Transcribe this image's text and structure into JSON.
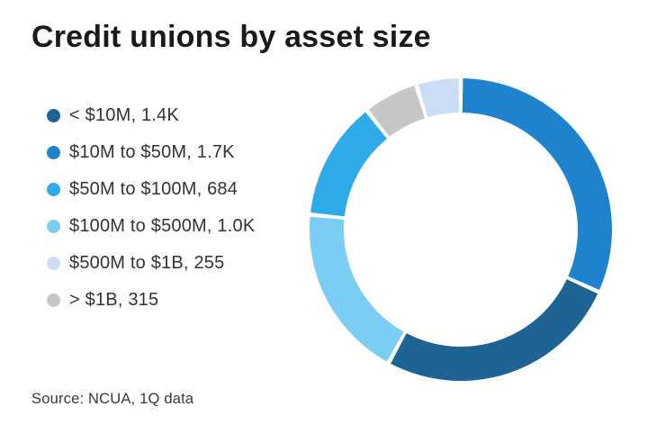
{
  "header": {
    "title": "Credit unions by asset size"
  },
  "source": {
    "text": "Source: NCUA, 1Q data"
  },
  "chart_data": {
    "type": "pie",
    "subtype": "donut",
    "title": "Credit unions by asset size",
    "legend_position": "left",
    "grid": false,
    "segments": [
      {
        "label": "< $10M",
        "value": 1400,
        "value_display": "1.4K",
        "display": "< $10M, 1.4K",
        "color": "#1d6394"
      },
      {
        "label": "$10M to $50M",
        "value": 1700,
        "value_display": "1.7K",
        "display": "$10M to $50M, 1.7K",
        "color": "#1f82cf"
      },
      {
        "label": "$50M to $100M",
        "value": 684,
        "value_display": "684",
        "display": "$50M to $100M, 684",
        "color": "#2faae8"
      },
      {
        "label": "$100M to $500M",
        "value": 1000,
        "value_display": "1.0K",
        "display": "$100M to $500M, 1.0K",
        "color": "#7bcdf3"
      },
      {
        "label": "$500M to $1B",
        "value": 255,
        "value_display": "255",
        "display": "$500M to $1B, 255",
        "color": "#cbdef6"
      },
      {
        "label": "> $1B",
        "value": 315,
        "value_display": "315",
        "display": "> $1B, 315",
        "color": "#c5c7c9"
      }
    ],
    "pie_order": [
      1,
      0,
      3,
      2,
      5,
      4
    ],
    "start_angle_deg": 0,
    "clockwise": true,
    "donut_geometry": {
      "outer_radius": 168,
      "inner_radius": 130,
      "gap_deg": 1.6
    }
  }
}
